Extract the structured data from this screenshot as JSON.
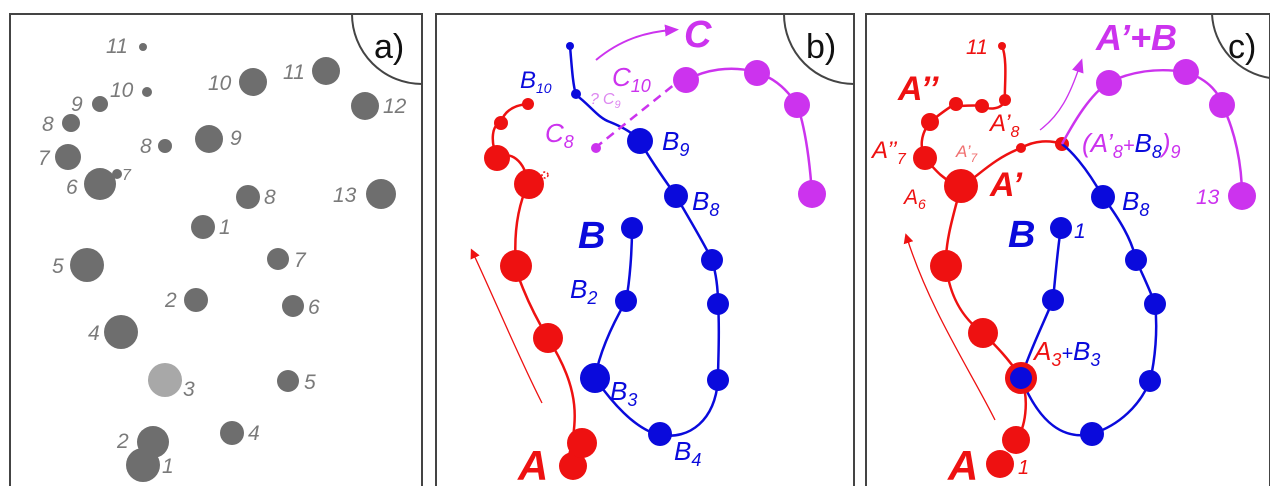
{
  "panels": [
    {
      "corner_label": "a)",
      "dot_labels": [
        "11",
        "10",
        "9",
        "8",
        "7",
        "6",
        "7",
        "5",
        "4",
        "2",
        "3",
        "2",
        "1",
        "10",
        "11",
        "12",
        "9",
        "8",
        "8",
        "1",
        "13",
        "7",
        "6",
        "5",
        "4"
      ]
    },
    {
      "corner_label": "b)",
      "big_labels": {
        "a": "A",
        "b": "B",
        "c": "C"
      },
      "blue_labels": {
        "b10": "B",
        "b10_sub": "10",
        "b9": "B",
        "b9_sub": "9",
        "b8": "B",
        "b8_sub": "8",
        "b2": "B",
        "b2_sub": "2",
        "b3": "B",
        "b3_sub": "3",
        "b4": "B",
        "b4_sub": "4"
      },
      "mag_labels": {
        "c10": "C",
        "c10_sub": "10",
        "c8": "C",
        "c8_sub": "8",
        "q": "?",
        "c9": "C",
        "c9_sub": "9"
      }
    },
    {
      "corner_label": "c)",
      "big_labels": {
        "a": "A",
        "b": "B",
        "a_dprime": "A’’",
        "a_prime": "A’",
        "apb": "A’+B"
      },
      "red_labels": {
        "n11": "11",
        "a8": "A’",
        "a8_sub": "8",
        "a7dp": "A’’",
        "a7dp_sub": "7",
        "a7p": "A’",
        "a7p_sub": "7",
        "a6": "A",
        "a6_sub": "6",
        "a3": "A",
        "a3_sub": "3",
        "n1": "1"
      },
      "blue_labels": {
        "plus": "+",
        "b3": "B",
        "b3_sub": "3",
        "b8": "B",
        "b8_sub": "8",
        "n1": "1"
      },
      "mag_labels": {
        "open": "(A’",
        "open_sub": "8",
        "plus": "+",
        "b8": "B",
        "b8_sub": "8",
        "close": ")",
        "close_sub": "9",
        "n13": "13"
      }
    }
  ],
  "colors": {
    "gray": "#6e6e6e",
    "light_gray": "#a8a8a8",
    "red": "#ee1111",
    "blue": "#0a0adc",
    "magenta": "#cc33ee",
    "frame": "#444444"
  }
}
